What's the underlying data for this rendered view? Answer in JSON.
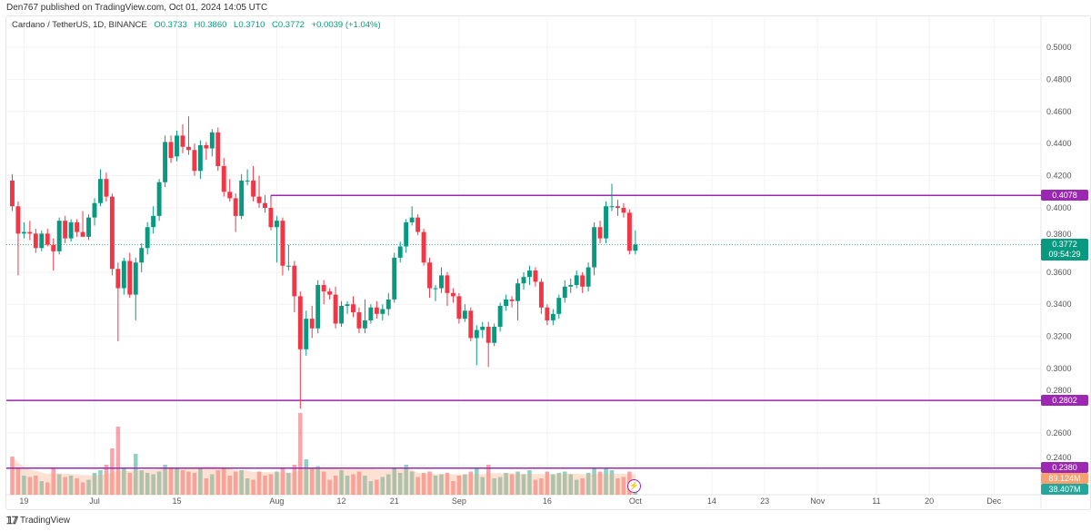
{
  "header": {
    "published": "Den767 published on TradingView.com, Oct 01, 2024 14:05 UTC",
    "symbol": "Cardano / TetherUS, 1D, BINANCE",
    "open": "O0.3733",
    "high": "H0.3860",
    "low": "L0.3710",
    "close": "C0.3772",
    "change": "+0.0039 (+1.04%)"
  },
  "badges": {
    "resistance": "0.4078",
    "price": "0.3772",
    "countdown": "09:54:29",
    "support1": "0.2802",
    "support2": "0.2380",
    "volume_ma": "89.124M",
    "volume": "38.407M"
  },
  "footer": {
    "brand": "TradingView",
    "logo": "17"
  },
  "colors": {
    "up": "#089981",
    "down": "#f23645",
    "levels": "#9c27b0",
    "volume_ma": "#f7a072"
  },
  "icons": {
    "alert": "lightning-icon",
    "logo": "tradingview-logo"
  },
  "chart_data": {
    "type": "candlestick",
    "title": "Cardano / TetherUS, 1D, BINANCE",
    "ylim": [
      0.2215,
      0.5192
    ],
    "xlim": [
      "2024-06-16",
      "2024-12-09"
    ],
    "grid": true,
    "yticks": [
      "0.5000",
      "0.4800",
      "0.4600",
      "0.4400",
      "0.4200",
      "0.4000",
      "0.3800",
      "0.3600",
      "0.3400",
      "0.3200",
      "0.3000",
      "0.2800",
      "0.2600",
      "0.2400"
    ],
    "xticks": [
      [
        "2024-06-19",
        "19"
      ],
      [
        "2024-07-01",
        "Jul"
      ],
      [
        "2024-07-15",
        "15"
      ],
      [
        "2024-08-01",
        "Aug"
      ],
      [
        "2024-08-12",
        "12"
      ],
      [
        "2024-08-21",
        "21"
      ],
      [
        "2024-09-01",
        "Sep"
      ],
      [
        "2024-09-16",
        "16"
      ],
      [
        "2024-10-01",
        "Oct"
      ],
      [
        "2024-10-14",
        "14"
      ],
      [
        "2024-10-23",
        "23"
      ],
      [
        "2024-11-01",
        "Nov"
      ],
      [
        "2024-11-11",
        "11"
      ],
      [
        "2024-11-20",
        "20"
      ],
      [
        "2024-12-01",
        "Dec"
      ]
    ],
    "horizontal_levels": [
      {
        "value": 0.4078,
        "from": "2024-07-31"
      },
      {
        "value": 0.2802,
        "from": "2024-06-16"
      },
      {
        "value": 0.238,
        "from": "2024-06-16"
      }
    ],
    "last_price": 0.3772,
    "volume_ma_millions": 89.124,
    "columns": [
      "date",
      "open",
      "high",
      "low",
      "close",
      "volume_millions"
    ],
    "candles": [
      [
        "2024-06-17",
        0.417,
        0.421,
        0.398,
        0.401,
        140
      ],
      [
        "2024-06-18",
        0.401,
        0.404,
        0.358,
        0.384,
        95
      ],
      [
        "2024-06-19",
        0.384,
        0.391,
        0.381,
        0.385,
        70
      ],
      [
        "2024-06-20",
        0.385,
        0.392,
        0.38,
        0.384,
        65
      ],
      [
        "2024-06-21",
        0.384,
        0.387,
        0.372,
        0.375,
        70
      ],
      [
        "2024-06-22",
        0.375,
        0.386,
        0.373,
        0.384,
        50
      ],
      [
        "2024-06-23",
        0.384,
        0.387,
        0.376,
        0.377,
        45
      ],
      [
        "2024-06-24",
        0.377,
        0.381,
        0.361,
        0.373,
        95
      ],
      [
        "2024-06-25",
        0.373,
        0.394,
        0.371,
        0.392,
        75
      ],
      [
        "2024-06-26",
        0.392,
        0.395,
        0.378,
        0.381,
        65
      ],
      [
        "2024-06-27",
        0.381,
        0.393,
        0.379,
        0.391,
        70
      ],
      [
        "2024-06-28",
        0.391,
        0.393,
        0.382,
        0.385,
        60
      ],
      [
        "2024-06-29",
        0.385,
        0.398,
        0.383,
        0.382,
        45
      ],
      [
        "2024-06-30",
        0.382,
        0.396,
        0.38,
        0.394,
        55
      ],
      [
        "2024-07-01",
        0.394,
        0.406,
        0.389,
        0.403,
        80
      ],
      [
        "2024-07-02",
        0.403,
        0.424,
        0.401,
        0.418,
        90
      ],
      [
        "2024-07-03",
        0.418,
        0.422,
        0.404,
        0.407,
        110
      ],
      [
        "2024-07-04",
        0.407,
        0.409,
        0.358,
        0.362,
        170
      ],
      [
        "2024-07-05",
        0.362,
        0.366,
        0.317,
        0.35,
        250
      ],
      [
        "2024-07-06",
        0.35,
        0.369,
        0.346,
        0.367,
        95
      ],
      [
        "2024-07-07",
        0.367,
        0.372,
        0.344,
        0.346,
        80
      ],
      [
        "2024-07-08",
        0.346,
        0.369,
        0.33,
        0.366,
        150
      ],
      [
        "2024-07-09",
        0.366,
        0.378,
        0.36,
        0.375,
        90
      ],
      [
        "2024-07-10",
        0.375,
        0.391,
        0.371,
        0.388,
        80
      ],
      [
        "2024-07-11",
        0.388,
        0.401,
        0.384,
        0.395,
        75
      ],
      [
        "2024-07-12",
        0.395,
        0.418,
        0.392,
        0.416,
        85
      ],
      [
        "2024-07-13",
        0.416,
        0.445,
        0.413,
        0.441,
        110
      ],
      [
        "2024-07-14",
        0.441,
        0.445,
        0.428,
        0.431,
        95
      ],
      [
        "2024-07-15",
        0.432,
        0.448,
        0.429,
        0.445,
        100
      ],
      [
        "2024-07-16",
        0.445,
        0.452,
        0.434,
        0.438,
        90
      ],
      [
        "2024-07-17",
        0.438,
        0.457,
        0.433,
        0.436,
        85
      ],
      [
        "2024-07-18",
        0.436,
        0.44,
        0.42,
        0.423,
        80
      ],
      [
        "2024-07-19",
        0.423,
        0.442,
        0.418,
        0.439,
        95
      ],
      [
        "2024-07-20",
        0.439,
        0.441,
        0.43,
        0.437,
        60
      ],
      [
        "2024-07-21",
        0.437,
        0.449,
        0.432,
        0.447,
        75
      ],
      [
        "2024-07-22",
        0.447,
        0.45,
        0.423,
        0.426,
        90
      ],
      [
        "2024-07-23",
        0.426,
        0.431,
        0.407,
        0.41,
        95
      ],
      [
        "2024-07-24",
        0.41,
        0.418,
        0.404,
        0.406,
        70
      ],
      [
        "2024-07-25",
        0.406,
        0.409,
        0.385,
        0.395,
        85
      ],
      [
        "2024-07-26",
        0.395,
        0.421,
        0.393,
        0.417,
        90
      ],
      [
        "2024-07-27",
        0.417,
        0.424,
        0.414,
        0.417,
        60
      ],
      [
        "2024-07-28",
        0.417,
        0.426,
        0.404,
        0.407,
        55
      ],
      [
        "2024-07-29",
        0.407,
        0.42,
        0.4,
        0.403,
        85
      ],
      [
        "2024-07-30",
        0.403,
        0.408,
        0.397,
        0.4,
        70
      ],
      [
        "2024-07-31",
        0.4,
        0.405,
        0.386,
        0.388,
        75
      ],
      [
        "2024-08-01",
        0.388,
        0.395,
        0.366,
        0.392,
        85
      ],
      [
        "2024-08-02",
        0.392,
        0.394,
        0.358,
        0.364,
        95
      ],
      [
        "2024-08-03",
        0.364,
        0.377,
        0.361,
        0.364,
        80
      ],
      [
        "2024-08-04",
        0.364,
        0.367,
        0.335,
        0.345,
        110
      ],
      [
        "2024-08-05",
        0.345,
        0.348,
        0.275,
        0.312,
        300
      ],
      [
        "2024-08-06",
        0.312,
        0.336,
        0.308,
        0.331,
        130
      ],
      [
        "2024-08-07",
        0.331,
        0.339,
        0.319,
        0.325,
        95
      ],
      [
        "2024-08-08",
        0.325,
        0.355,
        0.322,
        0.352,
        105
      ],
      [
        "2024-08-09",
        0.352,
        0.355,
        0.34,
        0.348,
        85
      ],
      [
        "2024-08-10",
        0.348,
        0.35,
        0.343,
        0.346,
        55
      ],
      [
        "2024-08-11",
        0.346,
        0.351,
        0.325,
        0.328,
        70
      ],
      [
        "2024-08-12",
        0.328,
        0.342,
        0.326,
        0.339,
        90
      ],
      [
        "2024-08-13",
        0.339,
        0.342,
        0.334,
        0.34,
        70
      ],
      [
        "2024-08-14",
        0.34,
        0.345,
        0.332,
        0.335,
        75
      ],
      [
        "2024-08-15",
        0.335,
        0.338,
        0.322,
        0.325,
        85
      ],
      [
        "2024-08-16",
        0.325,
        0.343,
        0.322,
        0.33,
        70
      ],
      [
        "2024-08-17",
        0.33,
        0.34,
        0.328,
        0.338,
        50
      ],
      [
        "2024-08-18",
        0.338,
        0.342,
        0.331,
        0.334,
        55
      ],
      [
        "2024-08-19",
        0.334,
        0.34,
        0.33,
        0.337,
        65
      ],
      [
        "2024-08-20",
        0.337,
        0.347,
        0.333,
        0.343,
        75
      ],
      [
        "2024-08-21",
        0.343,
        0.372,
        0.341,
        0.369,
        95
      ],
      [
        "2024-08-22",
        0.369,
        0.379,
        0.366,
        0.376,
        80
      ],
      [
        "2024-08-23",
        0.376,
        0.393,
        0.372,
        0.391,
        110
      ],
      [
        "2024-08-24",
        0.391,
        0.401,
        0.389,
        0.394,
        85
      ],
      [
        "2024-08-25",
        0.394,
        0.396,
        0.383,
        0.385,
        65
      ],
      [
        "2024-08-26",
        0.385,
        0.387,
        0.364,
        0.366,
        80
      ],
      [
        "2024-08-27",
        0.366,
        0.369,
        0.344,
        0.35,
        85
      ],
      [
        "2024-08-28",
        0.35,
        0.352,
        0.342,
        0.35,
        70
      ],
      [
        "2024-08-29",
        0.35,
        0.363,
        0.347,
        0.358,
        75
      ],
      [
        "2024-08-30",
        0.358,
        0.36,
        0.339,
        0.347,
        80
      ],
      [
        "2024-08-31",
        0.347,
        0.35,
        0.341,
        0.345,
        50
      ],
      [
        "2024-09-01",
        0.345,
        0.347,
        0.328,
        0.331,
        70
      ],
      [
        "2024-09-02",
        0.331,
        0.34,
        0.329,
        0.336,
        75
      ],
      [
        "2024-09-03",
        0.336,
        0.338,
        0.317,
        0.319,
        85
      ],
      [
        "2024-09-04",
        0.319,
        0.327,
        0.302,
        0.324,
        100
      ],
      [
        "2024-09-05",
        0.324,
        0.329,
        0.319,
        0.326,
        65
      ],
      [
        "2024-09-06",
        0.326,
        0.329,
        0.301,
        0.316,
        110
      ],
      [
        "2024-09-07",
        0.316,
        0.328,
        0.314,
        0.326,
        60
      ],
      [
        "2024-09-08",
        0.326,
        0.341,
        0.323,
        0.339,
        65
      ],
      [
        "2024-09-09",
        0.339,
        0.346,
        0.336,
        0.343,
        80
      ],
      [
        "2024-09-10",
        0.343,
        0.345,
        0.338,
        0.342,
        75
      ],
      [
        "2024-09-11",
        0.342,
        0.356,
        0.33,
        0.353,
        85
      ],
      [
        "2024-09-12",
        0.353,
        0.36,
        0.349,
        0.357,
        75
      ],
      [
        "2024-09-13",
        0.357,
        0.364,
        0.352,
        0.361,
        90
      ],
      [
        "2024-09-14",
        0.361,
        0.363,
        0.351,
        0.354,
        55
      ],
      [
        "2024-09-15",
        0.354,
        0.356,
        0.334,
        0.338,
        60
      ],
      [
        "2024-09-16",
        0.338,
        0.34,
        0.327,
        0.33,
        85
      ],
      [
        "2024-09-17",
        0.33,
        0.337,
        0.327,
        0.334,
        75
      ],
      [
        "2024-09-18",
        0.334,
        0.346,
        0.331,
        0.344,
        80
      ],
      [
        "2024-09-19",
        0.344,
        0.355,
        0.341,
        0.351,
        85
      ],
      [
        "2024-09-20",
        0.351,
        0.356,
        0.347,
        0.352,
        75
      ],
      [
        "2024-09-21",
        0.352,
        0.361,
        0.35,
        0.358,
        55
      ],
      [
        "2024-09-22",
        0.358,
        0.36,
        0.347,
        0.351,
        60
      ],
      [
        "2024-09-23",
        0.351,
        0.366,
        0.348,
        0.363,
        80
      ],
      [
        "2024-09-24",
        0.363,
        0.391,
        0.358,
        0.388,
        100
      ],
      [
        "2024-09-25",
        0.388,
        0.392,
        0.378,
        0.381,
        85
      ],
      [
        "2024-09-26",
        0.381,
        0.404,
        0.378,
        0.401,
        95
      ],
      [
        "2024-09-27",
        0.401,
        0.415,
        0.398,
        0.401,
        90
      ],
      [
        "2024-09-28",
        0.401,
        0.405,
        0.395,
        0.4,
        60
      ],
      [
        "2024-09-29",
        0.4,
        0.403,
        0.394,
        0.397,
        65
      ],
      [
        "2024-09-30",
        0.397,
        0.399,
        0.371,
        0.3733,
        85
      ],
      [
        "2024-10-01",
        0.3733,
        0.386,
        0.371,
        0.3772,
        38.407
      ]
    ]
  }
}
